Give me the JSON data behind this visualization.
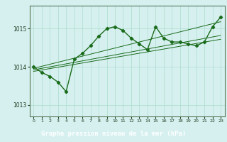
{
  "bg_color": "#d6f0f0",
  "grid_color": "#aaddcc",
  "line_color": "#1a6b1a",
  "marker_color": "#1a6b1a",
  "title": "Graphe pression niveau de la mer (hPa)",
  "title_fontsize": 6.5,
  "title_bg": "#2d6b2d",
  "title_fg": "#ffffff",
  "xlim": [
    -0.5,
    23.5
  ],
  "ylim": [
    1012.7,
    1015.6
  ],
  "yticks": [
    1013,
    1014,
    1015
  ],
  "xticks": [
    0,
    1,
    2,
    3,
    4,
    5,
    6,
    7,
    8,
    9,
    10,
    11,
    12,
    13,
    14,
    15,
    16,
    17,
    18,
    19,
    20,
    21,
    22,
    23
  ],
  "hours": [
    0,
    1,
    2,
    3,
    4,
    5,
    6,
    7,
    8,
    9,
    10,
    11,
    12,
    13,
    14,
    15,
    16,
    17,
    18,
    19,
    20,
    21,
    22,
    23
  ],
  "pressure_main": [
    1014.0,
    1013.85,
    1013.75,
    1013.6,
    1013.35,
    1014.2,
    1014.35,
    1014.55,
    1014.8,
    1015.0,
    1015.05,
    1014.95,
    1014.75,
    1014.6,
    1014.45,
    1015.05,
    1014.75,
    1014.65,
    1014.65,
    1014.6,
    1014.55,
    1014.65,
    1015.05,
    1015.3
  ],
  "trend_line1_x": [
    0,
    23
  ],
  "trend_line1_y": [
    1013.88,
    1014.72
  ],
  "trend_line2_x": [
    0,
    23
  ],
  "trend_line2_y": [
    1013.92,
    1014.82
  ],
  "trend_line3_x": [
    0,
    23
  ],
  "trend_line3_y": [
    1013.96,
    1015.18
  ]
}
